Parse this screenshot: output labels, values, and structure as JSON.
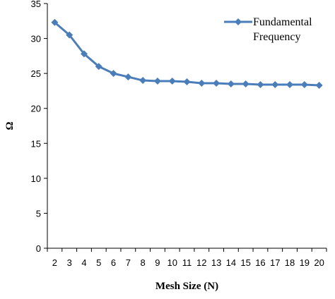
{
  "chart_data": {
    "type": "line",
    "title": "",
    "xlabel": "Mesh Size (N)",
    "ylabel": "Ω",
    "x": [
      2,
      3,
      4,
      5,
      6,
      7,
      8,
      9,
      10,
      11,
      12,
      13,
      14,
      15,
      16,
      17,
      18,
      19,
      20
    ],
    "x_tick_labels": [
      "2",
      "3",
      "4",
      "5",
      "6",
      "7",
      "8",
      "9",
      "10",
      "11",
      "12",
      "13",
      "14",
      "15",
      "16",
      "17",
      "18",
      "19",
      "20"
    ],
    "ylim": [
      0,
      35
    ],
    "y_ticks": [
      0,
      5,
      10,
      15,
      20,
      25,
      30,
      35
    ],
    "y_tick_labels": [
      "0",
      "5",
      "10",
      "15",
      "20",
      "25",
      "30",
      "35"
    ],
    "grid": false,
    "legend": {
      "position": "top-right",
      "lines": [
        "Fundamental",
        "Frequency"
      ]
    },
    "series": [
      {
        "name": "Fundamental Frequency",
        "color": "#4a7ebb",
        "marker": "diamond",
        "values": [
          32.3,
          30.5,
          27.8,
          26.0,
          25.0,
          24.5,
          24.0,
          23.9,
          23.9,
          23.8,
          23.6,
          23.6,
          23.5,
          23.5,
          23.4,
          23.4,
          23.4,
          23.4,
          23.3
        ]
      }
    ]
  }
}
